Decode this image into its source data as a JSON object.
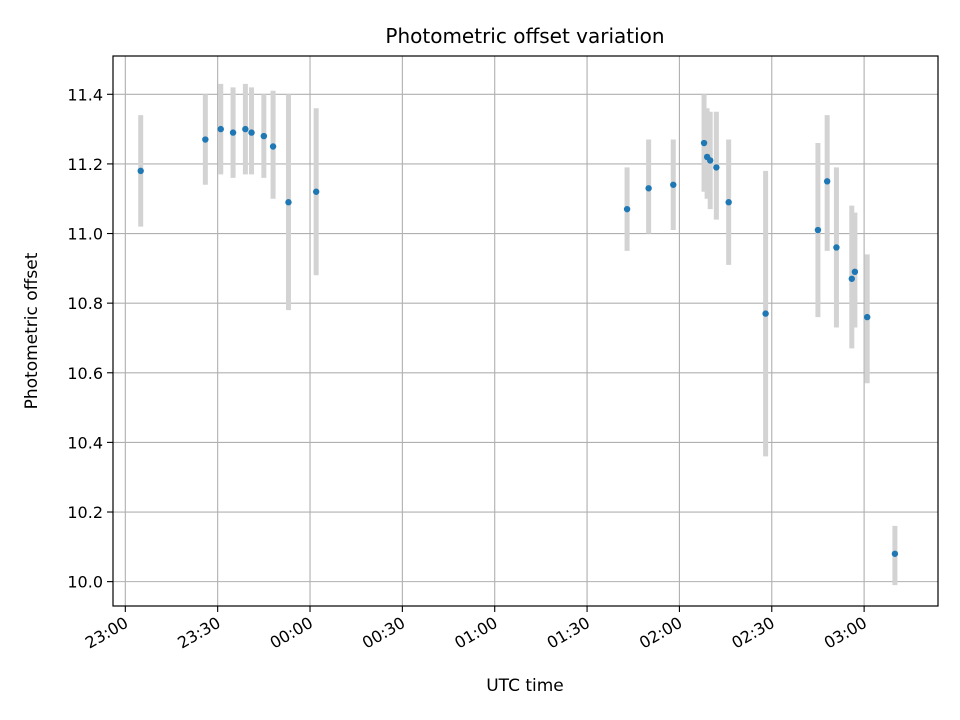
{
  "chart_data": {
    "type": "scatter",
    "title": "Photometric offset variation",
    "xlabel": "UTC time",
    "ylabel": "Photometric offset",
    "x_ticks": [
      "23:00",
      "23:30",
      "00:00",
      "00:30",
      "01:00",
      "01:30",
      "02:00",
      "02:30",
      "03:00"
    ],
    "y_ticks": [
      "10.0",
      "10.2",
      "10.4",
      "10.6",
      "10.8",
      "11.0",
      "11.2",
      "11.4"
    ],
    "xlim": [
      "22:56",
      "03:24"
    ],
    "ylim": [
      9.93,
      11.51
    ],
    "grid": true,
    "colors": {
      "point": "#1f77b4",
      "errorbar": "#d3d3d3",
      "grid": "#b0b0b0"
    },
    "points": [
      {
        "t": "23:05",
        "y": 11.18,
        "lo": 11.02,
        "hi": 11.34
      },
      {
        "t": "23:26",
        "y": 11.27,
        "lo": 11.14,
        "hi": 11.4
      },
      {
        "t": "23:31",
        "y": 11.3,
        "lo": 11.17,
        "hi": 11.43
      },
      {
        "t": "23:35",
        "y": 11.29,
        "lo": 11.16,
        "hi": 11.42
      },
      {
        "t": "23:39",
        "y": 11.3,
        "lo": 11.17,
        "hi": 11.43
      },
      {
        "t": "23:41",
        "y": 11.29,
        "lo": 11.17,
        "hi": 11.42
      },
      {
        "t": "23:45",
        "y": 11.28,
        "lo": 11.16,
        "hi": 11.4
      },
      {
        "t": "23:48",
        "y": 11.25,
        "lo": 11.1,
        "hi": 11.41
      },
      {
        "t": "23:53",
        "y": 11.09,
        "lo": 10.78,
        "hi": 11.4
      },
      {
        "t": "00:02",
        "y": 11.12,
        "lo": 10.88,
        "hi": 11.36
      },
      {
        "t": "01:43",
        "y": 11.07,
        "lo": 10.95,
        "hi": 11.19
      },
      {
        "t": "01:50",
        "y": 11.13,
        "lo": 11.0,
        "hi": 11.27
      },
      {
        "t": "01:58",
        "y": 11.14,
        "lo": 11.01,
        "hi": 11.27
      },
      {
        "t": "02:08",
        "y": 11.26,
        "lo": 11.12,
        "hi": 11.4
      },
      {
        "t": "02:09",
        "y": 11.22,
        "lo": 11.1,
        "hi": 11.36
      },
      {
        "t": "02:10",
        "y": 11.21,
        "lo": 11.07,
        "hi": 11.35
      },
      {
        "t": "02:12",
        "y": 11.19,
        "lo": 11.04,
        "hi": 11.35
      },
      {
        "t": "02:16",
        "y": 11.09,
        "lo": 10.91,
        "hi": 11.27
      },
      {
        "t": "02:28",
        "y": 10.77,
        "lo": 10.36,
        "hi": 11.18
      },
      {
        "t": "02:45",
        "y": 11.01,
        "lo": 10.76,
        "hi": 11.26
      },
      {
        "t": "02:48",
        "y": 11.15,
        "lo": 10.95,
        "hi": 11.34
      },
      {
        "t": "02:51",
        "y": 10.96,
        "lo": 10.73,
        "hi": 11.19
      },
      {
        "t": "02:56",
        "y": 10.87,
        "lo": 10.67,
        "hi": 11.08
      },
      {
        "t": "02:57",
        "y": 10.89,
        "lo": 10.73,
        "hi": 11.06
      },
      {
        "t": "03:01",
        "y": 10.76,
        "lo": 10.57,
        "hi": 10.94
      },
      {
        "t": "03:10",
        "y": 10.08,
        "lo": 9.99,
        "hi": 10.16
      }
    ]
  }
}
